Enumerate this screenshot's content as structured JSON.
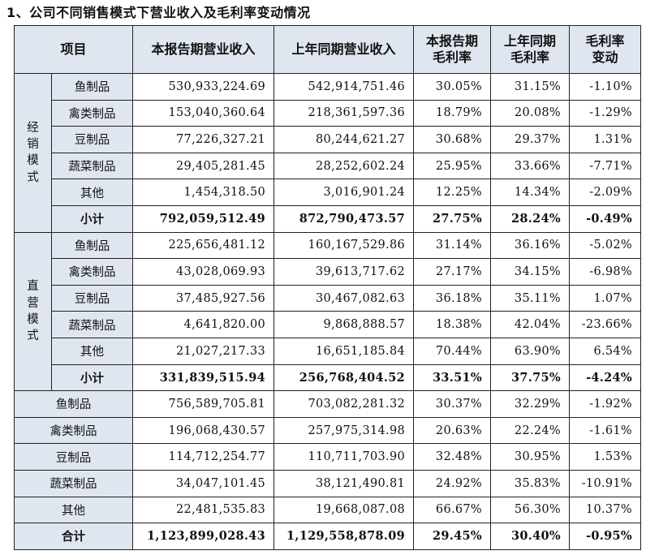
{
  "title": "1、公司不同销售模式下营业收入及毛利率变动情况",
  "headers": {
    "item": "项目",
    "cur_rev": "本报告期营业收入",
    "prev_rev": "上年同期营业收入",
    "cur_margin": "本报告期毛利率",
    "prev_margin": "上年同期毛利率",
    "margin_change": "毛利率变动"
  },
  "groups": [
    {
      "name": "经销模式",
      "rows": [
        {
          "label": "鱼制品",
          "cur_rev": "530,933,224.69",
          "prev_rev": "542,914,751.46",
          "cur_margin": "30.05%",
          "prev_margin": "31.15%",
          "change": "-1.10%"
        },
        {
          "label": "禽类制品",
          "cur_rev": "153,040,360.64",
          "prev_rev": "218,361,597.36",
          "cur_margin": "18.79%",
          "prev_margin": "20.08%",
          "change": "-1.29%"
        },
        {
          "label": "豆制品",
          "cur_rev": "77,226,327.21",
          "prev_rev": "80,244,621.27",
          "cur_margin": "30.68%",
          "prev_margin": "29.37%",
          "change": "1.31%"
        },
        {
          "label": "蔬菜制品",
          "cur_rev": "29,405,281.45",
          "prev_rev": "28,252,602.24",
          "cur_margin": "25.95%",
          "prev_margin": "33.66%",
          "change": "-7.71%"
        },
        {
          "label": "其他",
          "cur_rev": "1,454,318.50",
          "prev_rev": "3,016,901.24",
          "cur_margin": "12.25%",
          "prev_margin": "14.34%",
          "change": "-2.09%"
        }
      ],
      "subtotal": {
        "label": "小计",
        "cur_rev": "792,059,512.49",
        "prev_rev": "872,790,473.57",
        "cur_margin": "27.75%",
        "prev_margin": "28.24%",
        "change": "-0.49%"
      }
    },
    {
      "name": "直营模式",
      "rows": [
        {
          "label": "鱼制品",
          "cur_rev": "225,656,481.12",
          "prev_rev": "160,167,529.86",
          "cur_margin": "31.14%",
          "prev_margin": "36.16%",
          "change": "-5.02%"
        },
        {
          "label": "禽类制品",
          "cur_rev": "43,028,069.93",
          "prev_rev": "39,613,717.62",
          "cur_margin": "27.17%",
          "prev_margin": "34.15%",
          "change": "-6.98%"
        },
        {
          "label": "豆制品",
          "cur_rev": "37,485,927.56",
          "prev_rev": "30,467,082.63",
          "cur_margin": "36.18%",
          "prev_margin": "35.11%",
          "change": "1.07%"
        },
        {
          "label": "蔬菜制品",
          "cur_rev": "4,641,820.00",
          "prev_rev": "9,868,888.57",
          "cur_margin": "18.38%",
          "prev_margin": "42.04%",
          "change": "-23.66%"
        },
        {
          "label": "其他",
          "cur_rev": "21,027,217.33",
          "prev_rev": "16,651,185.84",
          "cur_margin": "70.44%",
          "prev_margin": "63.90%",
          "change": "6.54%"
        }
      ],
      "subtotal": {
        "label": "小计",
        "cur_rev": "331,839,515.94",
        "prev_rev": "256,768,404.52",
        "cur_margin": "33.51%",
        "prev_margin": "37.75%",
        "change": "-4.24%"
      }
    }
  ],
  "combined": [
    {
      "label": "鱼制品",
      "cur_rev": "756,589,705.81",
      "prev_rev": "703,082,281.32",
      "cur_margin": "30.37%",
      "prev_margin": "32.29%",
      "change": "-1.92%"
    },
    {
      "label": "禽类制品",
      "cur_rev": "196,068,430.57",
      "prev_rev": "257,975,314.98",
      "cur_margin": "20.63%",
      "prev_margin": "22.24%",
      "change": "-1.61%"
    },
    {
      "label": "豆制品",
      "cur_rev": "114,712,254.77",
      "prev_rev": "110,711,703.90",
      "cur_margin": "32.48%",
      "prev_margin": "30.95%",
      "change": "1.53%"
    },
    {
      "label": "蔬菜制品",
      "cur_rev": "34,047,101.45",
      "prev_rev": "38,121,490.81",
      "cur_margin": "24.92%",
      "prev_margin": "35.83%",
      "change": "-10.91%"
    },
    {
      "label": "其他",
      "cur_rev": "22,481,535.83",
      "prev_rev": "19,668,087.08",
      "cur_margin": "66.67%",
      "prev_margin": "56.30%",
      "change": "10.37%"
    }
  ],
  "total": {
    "label": "合计",
    "cur_rev": "1,123,899,028.43",
    "prev_rev": "1,129,558,878.09",
    "cur_margin": "29.45%",
    "prev_margin": "30.40%",
    "change": "-0.95%"
  },
  "colors": {
    "header_bg": "#dfe6ef",
    "border": "#222222"
  }
}
